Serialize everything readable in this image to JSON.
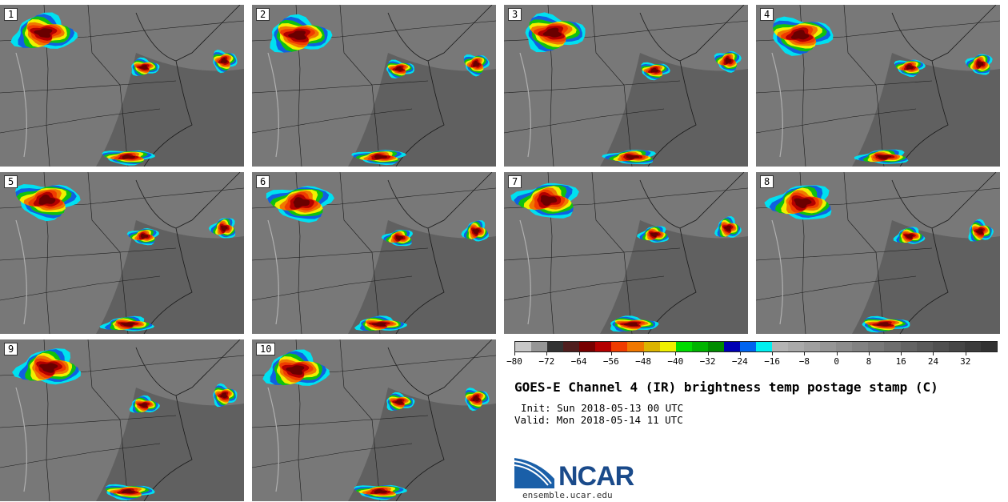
{
  "panels": [
    {
      "label": "1"
    },
    {
      "label": "2"
    },
    {
      "label": "3"
    },
    {
      "label": "4"
    },
    {
      "label": "5"
    },
    {
      "label": "6"
    },
    {
      "label": "7"
    },
    {
      "label": "8"
    },
    {
      "label": "9"
    },
    {
      "label": "10"
    }
  ],
  "colorbar": {
    "colors": [
      "#c8c8c8",
      "#969696",
      "#323232",
      "#501e1e",
      "#780000",
      "#b40000",
      "#f03c00",
      "#f07800",
      "#dcb400",
      "#f0f000",
      "#00dc00",
      "#00b400",
      "#008c00",
      "#0000b4",
      "#0064f0",
      "#00f0f0",
      "#b4b4b4",
      "#aaaaaa",
      "#a0a0a0",
      "#969696",
      "#8c8c8c",
      "#828282",
      "#787878",
      "#6e6e6e",
      "#646464",
      "#5a5a5a",
      "#505050",
      "#464646",
      "#3c3c3c",
      "#323232"
    ],
    "ticks": [
      "−80",
      "−72",
      "−64",
      "−56",
      "−48",
      "−40",
      "−32",
      "−24",
      "−16",
      "−8",
      "0",
      "8",
      "16",
      "24",
      "32"
    ],
    "min": -80,
    "max": 40
  },
  "title": "GOES-E Channel 4 (IR) brightness temp postage stamp (C)",
  "init": "Init: Sun 2018-05-13 00 UTC",
  "valid": "Valid: Mon 2018-05-14 11 UTC",
  "logo": {
    "name": "NCAR",
    "site": "ensemble.ucar.edu"
  }
}
